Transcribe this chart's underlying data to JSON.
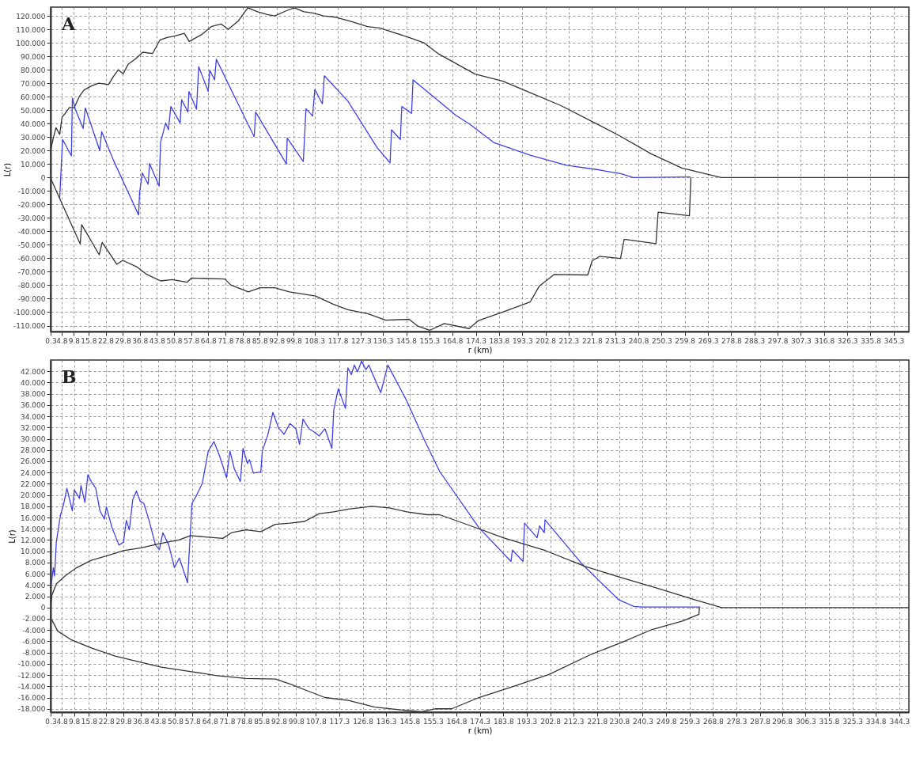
{
  "chart_data": [
    {
      "type": "line",
      "annotations": [
        "A"
      ],
      "xlabel": "r (km)",
      "ylabel": "L(r)",
      "grid": true,
      "line_style": "solid",
      "marker": "none",
      "xlim": [
        0.3,
        351.5
      ],
      "ylim": [
        -114.4,
        126.5
      ],
      "xticks": [
        0.3,
        4.8,
        9.8,
        15.8,
        22.8,
        29.8,
        36.8,
        43.8,
        50.8,
        57.8,
        64.8,
        71.8,
        78.8,
        85.8,
        92.8,
        99.8,
        108.3,
        117.8,
        127.3,
        136.3,
        145.8,
        155.3,
        164.8,
        174.3,
        183.8,
        193.3,
        202.8,
        212.3,
        221.8,
        231.3,
        240.8,
        250.3,
        259.8,
        269.3,
        278.8,
        288.3,
        297.8,
        307.3,
        316.8,
        326.3,
        335.8,
        345.3
      ],
      "yticks": [
        {
          "value": 120,
          "label": "120.000"
        },
        {
          "value": 110,
          "label": "110.000"
        },
        {
          "value": 100,
          "label": "100.000"
        },
        {
          "value": 90,
          "label": "90.000"
        },
        {
          "value": 80,
          "label": "80.000"
        },
        {
          "value": 70,
          "label": "70.000"
        },
        {
          "value": 60,
          "label": "60.000"
        },
        {
          "value": 50,
          "label": "50.000"
        },
        {
          "value": 40,
          "label": "40.000"
        },
        {
          "value": 30,
          "label": "30.000"
        },
        {
          "value": 20,
          "label": "20.000"
        },
        {
          "value": 10,
          "label": "10.000"
        },
        0,
        {
          "value": -10,
          "label": "-10.000"
        },
        {
          "value": -20,
          "label": "-20.000"
        },
        {
          "value": -30,
          "label": "-30.000"
        },
        {
          "value": -40,
          "label": "-40.000"
        },
        {
          "value": -50,
          "label": "-50.000"
        },
        {
          "value": -60,
          "label": "-60.000"
        },
        {
          "value": -70,
          "label": "-70.000"
        },
        {
          "value": -80,
          "label": "-80.000"
        },
        {
          "value": -90,
          "label": "-90.000"
        },
        {
          "value": -100,
          "label": "-100.000"
        },
        {
          "value": -110,
          "label": "-110.000"
        }
      ],
      "series": [
        {
          "color": "#333333",
          "x": [
            0.5,
            1.5,
            2.5,
            4,
            5,
            6,
            8,
            10,
            12,
            14,
            17,
            20,
            24,
            26,
            28,
            30,
            32,
            35,
            38,
            42,
            45,
            48,
            51,
            55,
            57,
            62,
            66,
            70,
            73,
            77,
            81,
            85,
            89,
            92,
            97,
            100,
            104,
            108,
            112,
            117,
            123,
            130,
            135,
            140,
            147,
            153,
            159.2,
            174,
            185.4,
            195.2,
            209,
            223.8,
            233.8,
            246,
            258.6,
            274.7,
            351.5
          ],
          "values": [
            22,
            30,
            37,
            32,
            45,
            47,
            52,
            52,
            60,
            65,
            68,
            70,
            69,
            75,
            80,
            77,
            84,
            88,
            93,
            92,
            102,
            104,
            105,
            107,
            101,
            106,
            112,
            114,
            110,
            116,
            126,
            123,
            121,
            120,
            124,
            126,
            123,
            122,
            120,
            119,
            116,
            112,
            111,
            108,
            104,
            100,
            91.6,
            76.8,
            71.5,
            64,
            53.5,
            39.8,
            30.3,
            17.6,
            7,
            0,
            0
          ]
        },
        {
          "color": "#4040e8",
          "x": [
            4.0,
            5.2,
            8.8,
            9.2,
            10.4,
            13.6,
            14.5,
            20.4,
            21.2,
            26.2,
            36.3,
            36.7,
            37.8,
            40.2,
            40.8,
            44.7,
            45.3,
            47.4,
            48.5,
            49.5,
            53.3,
            53.9,
            56.5,
            56.9,
            60.0,
            60.9,
            64.8,
            65.4,
            67.4,
            68.1,
            77,
            83.6,
            84.2,
            96.8,
            97.1,
            103.7,
            104.8,
            107.5,
            108.4,
            111.5,
            112.3,
            121.9,
            133.9,
            139.2,
            139.8,
            143.4,
            144,
            148,
            148.6,
            156.6,
            166,
            171.6,
            181.6,
            196.5,
            211.4,
            223.8,
            233.8,
            238.7,
            262.1
          ],
          "values": [
            -15.6,
            28.2,
            16,
            58.8,
            50.7,
            36.4,
            51.7,
            20,
            34,
            12,
            -27.8,
            -11.5,
            3.4,
            -5,
            10.3,
            -6.4,
            26.2,
            40.5,
            35.4,
            52.7,
            40.5,
            57.8,
            48.6,
            63.9,
            50.7,
            82.3,
            63.9,
            79.6,
            72.5,
            87.8,
            54.7,
            30.3,
            48.6,
            9.9,
            29.3,
            11.9,
            51.1,
            45.6,
            65.4,
            54.7,
            75.5,
            56.8,
            22.1,
            10.9,
            35.4,
            28.2,
            52.7,
            47.6,
            72.5,
            60.6,
            46.3,
            39.8,
            26,
            16.5,
            9.1,
            5.9,
            2.8,
            0,
            0.4
          ]
        },
        {
          "color": "#333333",
          "x": [
            0.5,
            4,
            12.4,
            13,
            20.2,
            21.4,
            27.4,
            29.8,
            35.8,
            39.4,
            45.3,
            50.1,
            56.1,
            57.9,
            71.6,
            74,
            81.2,
            86,
            92,
            98,
            108.7,
            115.9,
            121.9,
            130.3,
            137.4,
            147,
            150.6,
            155.4,
            161.4,
            171.6,
            175.4,
            185.3,
            196.5,
            200.2,
            206.4,
            220.1,
            221.9,
            225,
            233.5,
            235,
            248,
            248.9,
            261.7,
            262.3
          ],
          "values": [
            -1.3,
            -15.6,
            -49.3,
            -35,
            -57.4,
            -48.2,
            -64.5,
            -61.5,
            -66.6,
            -71.7,
            -76.8,
            -75.8,
            -77.8,
            -74.7,
            -75.4,
            -79.8,
            -84.9,
            -81.9,
            -81.9,
            -84.9,
            -88,
            -94.1,
            -98.2,
            -101.2,
            -105.9,
            -105.3,
            -110.4,
            -113.5,
            -108.4,
            -112.2,
            -106.2,
            -99.9,
            -92.5,
            -80.8,
            -72,
            -72.4,
            -61.8,
            -58.6,
            -60.1,
            -45.9,
            -49.1,
            -25.8,
            -28.4,
            0
          ]
        }
      ]
    },
    {
      "type": "line",
      "annotations": [
        "B"
      ],
      "xlabel": "r (km)",
      "ylabel": "L(r)",
      "grid": true,
      "line_style": "solid",
      "marker": "none",
      "xlim": [
        0.3,
        348.2
      ],
      "ylim": [
        -18.6,
        44
      ],
      "xticks": [
        0.3,
        4.8,
        9.8,
        15.8,
        22.8,
        29.8,
        36.8,
        43.8,
        50.8,
        57.8,
        64.8,
        71.8,
        78.8,
        85.8,
        92.8,
        99.8,
        107.8,
        117.3,
        126.8,
        136.3,
        145.8,
        155.3,
        164.8,
        174.3,
        183.8,
        193.3,
        202.8,
        212.3,
        221.8,
        230.8,
        240.3,
        249.8,
        259.3,
        268.8,
        278.3,
        287.8,
        296.8,
        306.3,
        315.8,
        325.3,
        334.8,
        344.3
      ],
      "yticks": [
        {
          "value": 42,
          "label": "42.000"
        },
        {
          "value": 40,
          "label": "40.000"
        },
        {
          "value": 38,
          "label": "38.000"
        },
        {
          "value": 36,
          "label": "36.000"
        },
        {
          "value": 34,
          "label": "34.000"
        },
        {
          "value": 32,
          "label": "32.000"
        },
        {
          "value": 30,
          "label": "30.000"
        },
        {
          "value": 28,
          "label": "28.000"
        },
        {
          "value": 26,
          "label": "26.000"
        },
        {
          "value": 24,
          "label": "24.000"
        },
        {
          "value": 22,
          "label": "22.000"
        },
        {
          "value": 20,
          "label": "20.000"
        },
        {
          "value": 18,
          "label": "18.000"
        },
        {
          "value": 16,
          "label": "16.000"
        },
        {
          "value": 14,
          "label": "14.000"
        },
        {
          "value": 12,
          "label": "12.000"
        },
        {
          "value": 10,
          "label": "10.000"
        },
        {
          "value": 8,
          "label": "8.000"
        },
        {
          "value": 6,
          "label": "6.000"
        },
        {
          "value": 4,
          "label": "4.000"
        },
        {
          "value": 2,
          "label": "2.000"
        },
        0,
        {
          "value": -2,
          "label": "-2.000"
        },
        {
          "value": -4,
          "label": "-4.000"
        },
        {
          "value": -6,
          "label": "-6.000"
        },
        {
          "value": -8,
          "label": "-8.000"
        },
        {
          "value": -10,
          "label": "-10.000"
        },
        {
          "value": -12,
          "label": "-12.000"
        },
        {
          "value": -14,
          "label": "-14.000"
        },
        {
          "value": -16,
          "label": "-16.000"
        },
        {
          "value": -18,
          "label": "-18.000"
        }
      ],
      "series": [
        {
          "color": "#4040e8",
          "x": [
            0.6,
            1.4,
            1.9,
            2.6,
            4.3,
            5.5,
            6.9,
            9.1,
            9.9,
            12,
            12.6,
            14.2,
            15.4,
            16.8,
            18.6,
            20.3,
            22.1,
            22.9,
            25.1,
            28,
            29.8,
            31,
            32.2,
            33.6,
            35.1,
            36.6,
            38.1,
            40.2,
            42.8,
            44.4,
            45.8,
            48.2,
            50.5,
            52.5,
            55.8,
            57.6,
            59.4,
            61.8,
            64.2,
            66.5,
            68.9,
            71.6,
            73,
            74.8,
            77.2,
            78.3,
            80.1,
            80.9,
            82.5,
            85.5,
            86.1,
            88.4,
            90.4,
            92.6,
            94.9,
            97.3,
            99.7,
            101.2,
            102.6,
            105,
            106.8,
            109.2,
            111.5,
            114.3,
            115.1,
            116.9,
            119.8,
            120.8,
            122.2,
            123.4,
            124.7,
            126.3,
            128.1,
            129.3,
            134.1,
            137,
            144.7,
            151.8,
            158,
            173.9,
            186.9,
            187.5,
            191.8,
            192.4,
            197.5,
            198.5,
            200.4,
            200.7,
            215.8,
            230.5,
            236.7,
            240,
            263.7
          ],
          "values": [
            4.2,
            7.1,
            5.6,
            11.6,
            16.5,
            18.2,
            21.2,
            17.2,
            20.9,
            19.4,
            21.7,
            18.7,
            23.6,
            22.4,
            21.2,
            17.2,
            15.7,
            17.9,
            14.3,
            11.1,
            11.6,
            15.5,
            13.8,
            19.2,
            20.7,
            18.9,
            18.5,
            15.5,
            11.1,
            10.3,
            13.3,
            11.1,
            7.1,
            8.8,
            4.4,
            18.5,
            19.9,
            22.1,
            27.8,
            29.5,
            26.8,
            23.1,
            27.8,
            24.6,
            22.4,
            28.3,
            25.6,
            26.3,
            23.9,
            24.1,
            27.8,
            30.8,
            34.7,
            32,
            30.8,
            32.7,
            31.8,
            29,
            33.5,
            31.8,
            31.3,
            30.5,
            31.8,
            28.3,
            35.2,
            38.9,
            35.4,
            42.6,
            41.4,
            43.1,
            41.9,
            43.8,
            42.3,
            43.1,
            38.2,
            43.1,
            36.7,
            29.8,
            24.2,
            14.2,
            8.2,
            10.2,
            8.2,
            15,
            12.4,
            14.5,
            13.3,
            15.6,
            7.7,
            1.4,
            0.2,
            0.1,
            0.1
          ]
        },
        {
          "color": "#333333",
          "x": [
            0.3,
            0.8,
            2.6,
            6.1,
            10.9,
            16.8,
            23.9,
            29.8,
            36.9,
            44,
            52.3,
            57,
            64.2,
            70.1,
            73.6,
            79.5,
            85.5,
            91.4,
            97.3,
            103.2,
            109.2,
            115.1,
            121,
            130.5,
            137.6,
            144.7,
            153,
            158,
            173.9,
            183.8,
            201,
            217,
            231.8,
            246.5,
            261.3,
            272.3,
            348.2
          ],
          "values": [
            0,
            2.2,
            4.2,
            5.6,
            7.1,
            8.4,
            9.3,
            10.1,
            10.6,
            11.3,
            12,
            12.8,
            12.5,
            12.3,
            13.3,
            13.8,
            13.5,
            14.8,
            15,
            15.3,
            16.7,
            17,
            17.5,
            18,
            17.7,
            17,
            16.5,
            16.5,
            14,
            12.4,
            10.1,
            7.3,
            5.3,
            3.4,
            1.4,
            0,
            0
          ]
        },
        {
          "color": "#333333",
          "x": [
            0.8,
            3.2,
            8.5,
            16.8,
            26.2,
            35.7,
            45.2,
            55.8,
            67.7,
            79.5,
            91.4,
            97.3,
            104.4,
            111.5,
            121,
            131.7,
            142.3,
            150.6,
            156.5,
            162.9,
            173.9,
            188.7,
            202.3,
            219.5,
            231.8,
            244.1,
            256.4,
            263.1,
            263.3
          ],
          "values": [
            -2.2,
            -4.2,
            -5.7,
            -7.2,
            -8.6,
            -9.6,
            -10.6,
            -11.3,
            -12.1,
            -12.6,
            -12.7,
            -13.6,
            -14.8,
            -16,
            -16.5,
            -17.7,
            -18.2,
            -18.5,
            -18,
            -18,
            -16,
            -13.9,
            -11.9,
            -8.3,
            -6.2,
            -3.9,
            -2.4,
            -1.2,
            0
          ]
        }
      ]
    }
  ]
}
